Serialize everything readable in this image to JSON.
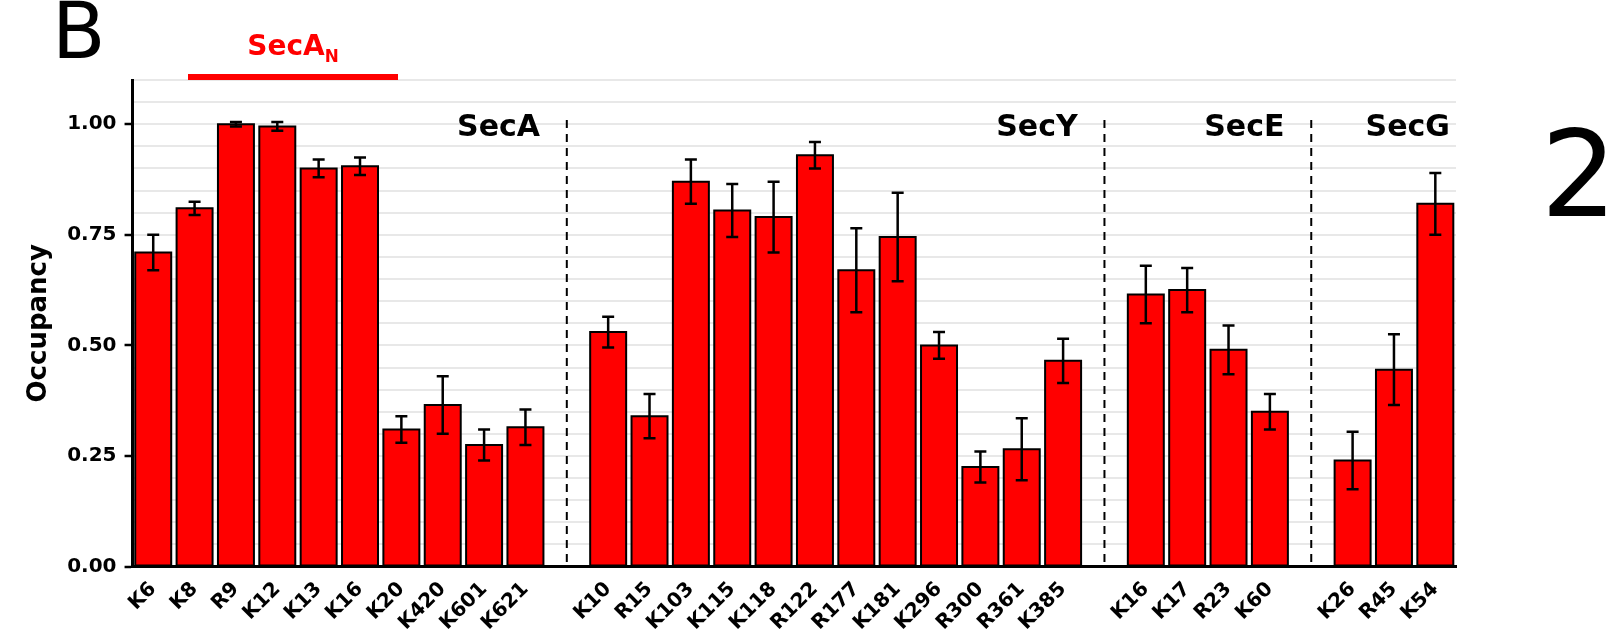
{
  "chart_data": {
    "type": "bar",
    "ylabel": "Occupancy",
    "categories": [
      "K6",
      "K8",
      "R9",
      "K12",
      "K13",
      "K16",
      "K20",
      "K420",
      "K601",
      "K621",
      null,
      "K10",
      "R15",
      "K103",
      "K115",
      "K118",
      "R122",
      "R177",
      "K181",
      "K296",
      "R300",
      "R361",
      "K385",
      null,
      "K16",
      "K17",
      "R23",
      "K60",
      null,
      "K26",
      "R45",
      "K54"
    ],
    "values": [
      0.71,
      0.81,
      1.0,
      0.995,
      0.9,
      0.905,
      0.31,
      0.365,
      0.275,
      0.315,
      null,
      0.53,
      0.34,
      0.87,
      0.805,
      0.79,
      0.93,
      0.67,
      0.745,
      0.5,
      0.225,
      0.265,
      0.465,
      null,
      0.615,
      0.625,
      0.49,
      0.35,
      null,
      0.24,
      0.445,
      0.82
    ],
    "errors": [
      0.04,
      0.015,
      0.005,
      0.01,
      0.02,
      0.02,
      0.03,
      0.065,
      0.035,
      0.04,
      null,
      0.035,
      0.05,
      0.05,
      0.06,
      0.08,
      0.03,
      0.095,
      0.1,
      0.03,
      0.035,
      0.07,
      0.05,
      null,
      0.065,
      0.05,
      0.055,
      0.04,
      null,
      0.065,
      0.08,
      0.07
    ],
    "color": "#ff0000",
    "ylim": [
      0,
      1.1
    ],
    "yticks": [
      {
        "value": 0,
        "label": "0.00"
      },
      {
        "value": 0.05,
        "label": null
      },
      {
        "value": 0.1,
        "label": null
      },
      {
        "value": 0.15,
        "label": null
      },
      {
        "value": 0.2,
        "label": null
      },
      {
        "value": 0.25,
        "label": "0.25"
      },
      {
        "value": 0.3,
        "label": null
      },
      {
        "value": 0.35,
        "label": null
      },
      {
        "value": 0.4,
        "label": null
      },
      {
        "value": 0.45,
        "label": null
      },
      {
        "value": 0.5,
        "label": "0.50"
      },
      {
        "value": 0.55,
        "label": null
      },
      {
        "value": 0.6,
        "label": null
      },
      {
        "value": 0.65,
        "label": null
      },
      {
        "value": 0.7,
        "label": null
      },
      {
        "value": 0.75,
        "label": "0.75"
      },
      {
        "value": 0.8,
        "label": null
      },
      {
        "value": 0.85,
        "label": null
      },
      {
        "value": 0.9,
        "label": null
      },
      {
        "value": 0.95,
        "label": null
      },
      {
        "value": 1,
        "label": "1.00"
      },
      {
        "value": 1.05,
        "label": null
      },
      {
        "value": 1.1,
        "label": null
      }
    ],
    "grid": "y",
    "annotations": [
      "B",
      "2",
      "SecA",
      "SecY",
      "SecE",
      "SecG",
      "SecA$_{N}$"
    ]
  }
}
